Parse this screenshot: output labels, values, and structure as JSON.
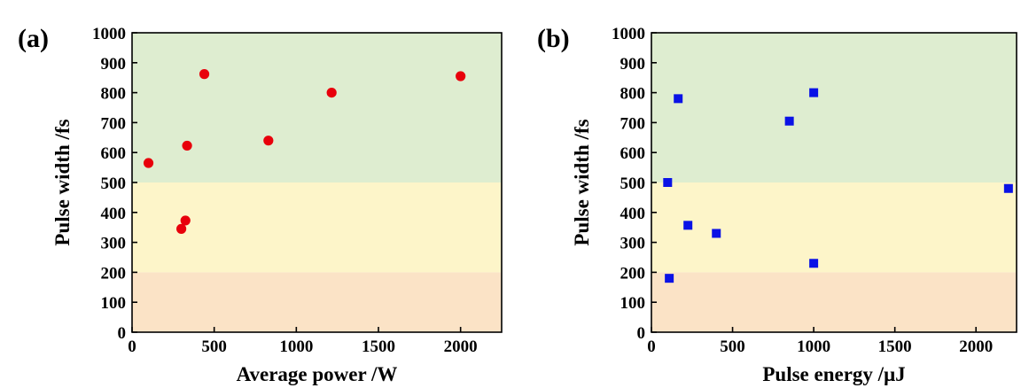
{
  "chart_data": [
    {
      "type": "scatter",
      "panel_label": "(a)",
      "xlabel": "Average power /W",
      "ylabel": "Pulse width /fs",
      "xlim": [
        0,
        2250
      ],
      "ylim": [
        0,
        1000
      ],
      "xticks": [
        0,
        500,
        1000,
        1500,
        2000
      ],
      "yticks": [
        0,
        100,
        200,
        300,
        400,
        500,
        600,
        700,
        800,
        900,
        1000
      ],
      "xtick_labels": [
        "0",
        "500",
        "1000",
        "1500",
        "2000"
      ],
      "ytick_labels": [
        "0",
        "100",
        "200",
        "300",
        "400",
        "500",
        "600",
        "700",
        "800",
        "900",
        "1000"
      ],
      "bands": [
        {
          "from": 0,
          "to": 200,
          "color": "#fbe3c6"
        },
        {
          "from": 200,
          "to": 500,
          "color": "#fdf5c9"
        },
        {
          "from": 500,
          "to": 1000,
          "color": "#deedd0"
        }
      ],
      "series": [
        {
          "name": "points",
          "marker": "circle",
          "color": "#e8000b",
          "x": [
            100,
            300,
            325,
            335,
            440,
            830,
            1215,
            2000
          ],
          "y": [
            565,
            345,
            373,
            623,
            862,
            640,
            800,
            855
          ]
        }
      ]
    },
    {
      "type": "scatter",
      "panel_label": "(b)",
      "xlabel": "Pulse energy /μJ",
      "ylabel": "Pulse width /fs",
      "xlim": [
        0,
        2250
      ],
      "ylim": [
        0,
        1000
      ],
      "xticks": [
        0,
        500,
        1000,
        1500,
        2000
      ],
      "yticks": [
        0,
        100,
        200,
        300,
        400,
        500,
        600,
        700,
        800,
        900,
        1000
      ],
      "xtick_labels": [
        "0",
        "500",
        "1000",
        "1500",
        "2000"
      ],
      "ytick_labels": [
        "0",
        "100",
        "200",
        "300",
        "400",
        "500",
        "600",
        "700",
        "800",
        "900",
        "1000"
      ],
      "bands": [
        {
          "from": 0,
          "to": 200,
          "color": "#fbe3c6"
        },
        {
          "from": 200,
          "to": 500,
          "color": "#fdf5c9"
        },
        {
          "from": 500,
          "to": 1000,
          "color": "#deedd0"
        }
      ],
      "series": [
        {
          "name": "points",
          "marker": "square",
          "color": "#0a12e6",
          "x": [
            100,
            110,
            165,
            225,
            400,
            850,
            1000,
            1000,
            2200
          ],
          "y": [
            500,
            180,
            780,
            357,
            330,
            705,
            800,
            230,
            480
          ]
        }
      ]
    }
  ]
}
